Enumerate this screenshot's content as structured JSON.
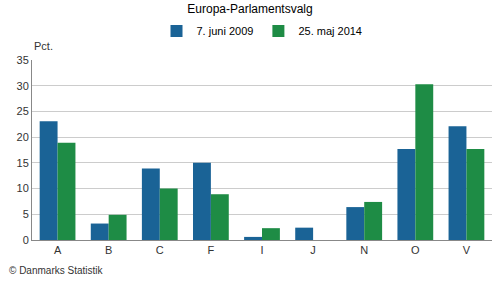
{
  "chart_data": {
    "type": "bar",
    "title": "Europa-Parlamentsvalg",
    "ylabel": "Pct.",
    "annotations": [
      "© Danmarks Statistik"
    ],
    "categories": [
      "A",
      "B",
      "C",
      "F",
      "I",
      "J",
      "N",
      "O",
      "V"
    ],
    "series": [
      {
        "name": "7. juni 2009",
        "color": "#1a6396",
        "values": [
          23.1,
          3.2,
          13.9,
          15.0,
          0.6,
          2.4,
          6.4,
          17.7,
          22.1
        ]
      },
      {
        "name": "25. maj 2014",
        "color": "#1e8c45",
        "values": [
          18.9,
          4.9,
          10.0,
          8.9,
          2.3,
          null,
          7.4,
          30.3,
          17.7
        ]
      }
    ],
    "ylim": [
      0,
      35
    ],
    "yticks": [
      0,
      5,
      10,
      15,
      20,
      25,
      30,
      35
    ],
    "grid": true,
    "legend": "top"
  }
}
